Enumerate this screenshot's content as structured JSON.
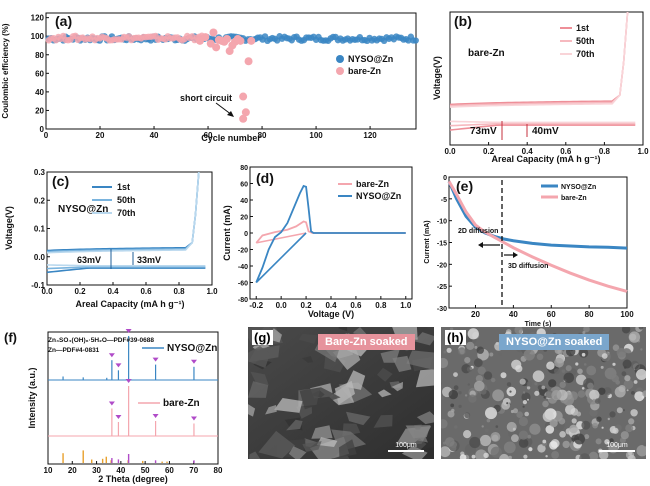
{
  "chart_data": [
    {
      "id": "a",
      "type": "scatter",
      "panel_label": "(a)",
      "xlabel": "Cycle number",
      "ylabel": "Coulombic efficiency (%)",
      "xlim": [
        0,
        137
      ],
      "ylim": [
        0,
        125
      ],
      "xticks": [
        "0",
        "20",
        "40",
        "60",
        "80",
        "100",
        "120"
      ],
      "yticks": [
        "0",
        "20",
        "40",
        "60",
        "80",
        "100",
        "120"
      ],
      "legend": "right",
      "legend_labels": [
        "NYSO@Zn",
        "bare-Zn"
      ],
      "annotation": "short circuit",
      "series": [
        {
          "name": "NYSO@Zn",
          "color": "#3a86c3",
          "mode": "dense",
          "x_start": 1,
          "x_end": 137,
          "base": 97.5,
          "amp": 2.5
        },
        {
          "name": "bare-Zn",
          "color": "#f4a6ae",
          "mode": "dense",
          "x_start": 1,
          "x_end": 58,
          "base": 98,
          "amp": 2.5,
          "extra_points": [
            [
              57,
              95
            ],
            [
              59,
              99
            ],
            [
              61,
              92
            ],
            [
              62,
              104
            ],
            [
              63,
              88
            ],
            [
              64,
              96
            ],
            [
              65,
              95
            ],
            [
              66,
              94
            ],
            [
              67,
              97
            ],
            [
              68,
              84
            ],
            [
              69,
              90
            ],
            [
              70,
              94
            ],
            [
              71,
              97
            ],
            [
              72,
              95
            ],
            [
              73,
              35
            ],
            [
              74,
              18
            ],
            [
              73,
              11
            ],
            [
              75,
              73
            ],
            [
              76,
              95
            ]
          ]
        }
      ]
    },
    {
      "id": "b",
      "type": "line",
      "panel_label": "(b)",
      "xlabel": "Areal Capacity (mA h g⁻¹)",
      "ylabel": "Voltage(V)",
      "xlim": [
        0,
        1.0
      ],
      "ylim": [
        -0.1,
        0.3
      ],
      "xticks": [
        "0.0",
        "0.2",
        "0.4",
        "0.6",
        "0.8",
        "1.0"
      ],
      "series_label": "bare-Zn",
      "legend_labels": [
        "1st",
        "50th",
        "70th"
      ],
      "colors": [
        "#ee8f98",
        "#f6b9bf",
        "#f9d4d8"
      ],
      "annotations": [
        "73mV",
        "40mV"
      ]
    },
    {
      "id": "c",
      "type": "line",
      "panel_label": "(c)",
      "xlabel": "Areal Capacity (mA h g⁻¹)",
      "ylabel": "Voltage(V)",
      "xlim": [
        0,
        1.0
      ],
      "ylim": [
        -0.1,
        0.3
      ],
      "xticks": [
        "0.0",
        "0.2",
        "0.4",
        "0.6",
        "0.8",
        "1.0"
      ],
      "yticks": [
        "-0.1",
        "0.0",
        "0.1",
        "0.2",
        "0.3"
      ],
      "series_label": "NYSO@Zn",
      "legend_labels": [
        "1st",
        "50th",
        "70th"
      ],
      "colors": [
        "#3a86c3",
        "#7ab4de",
        "#b9d8ee"
      ],
      "annotations": [
        "63mV",
        "33mV"
      ]
    },
    {
      "id": "d",
      "type": "line",
      "panel_label": "(d)",
      "xlabel": "Voltage (V)",
      "ylabel": "Current (mA)",
      "xlim": [
        -0.25,
        1.05
      ],
      "ylim": [
        -80,
        80
      ],
      "xticks": [
        "-0.2",
        "0.0",
        "0.2",
        "0.4",
        "0.6",
        "0.8",
        "1.0"
      ],
      "yticks": [
        "-80",
        "-60",
        "-40",
        "-20",
        "0",
        "20",
        "40",
        "60",
        "80"
      ],
      "legend_labels": [
        "bare-Zn",
        "NYSO@Zn"
      ],
      "series": [
        {
          "name": "bare-Zn",
          "color": "#f4a6ae",
          "points": [
            [
              -0.2,
              -12
            ],
            [
              -0.15,
              -3
            ],
            [
              -0.05,
              1
            ],
            [
              0.05,
              4
            ],
            [
              0.12,
              8
            ],
            [
              0.18,
              14
            ],
            [
              0.2,
              13
            ],
            [
              0.22,
              2
            ],
            [
              0.25,
              0
            ],
            [
              1.0,
              0
            ]
          ]
        },
        {
          "name": "NYSO@Zn",
          "color": "#3a86c3",
          "points": [
            [
              -0.2,
              -60
            ],
            [
              -0.15,
              -42
            ],
            [
              -0.1,
              -20
            ],
            [
              -0.05,
              -5
            ],
            [
              0.0,
              1
            ],
            [
              0.05,
              12
            ],
            [
              0.1,
              30
            ],
            [
              0.15,
              48
            ],
            [
              0.18,
              57
            ],
            [
              0.2,
              56
            ],
            [
              0.22,
              30
            ],
            [
              0.24,
              2
            ],
            [
              0.26,
              0
            ],
            [
              1.0,
              0
            ]
          ]
        }
      ]
    },
    {
      "id": "e",
      "type": "line",
      "panel_label": "(e)",
      "xlabel": "Time (s)",
      "ylabel": "Current (mA)",
      "xlim": [
        6,
        100
      ],
      "ylim": [
        -30,
        0
      ],
      "xticks": [
        "20",
        "40",
        "60",
        "80",
        "100"
      ],
      "yticks": [
        "-30",
        "-25",
        "-20",
        "-15",
        "-10",
        "-5",
        "0"
      ],
      "legend_labels": [
        "NYSO@Zn",
        "bare-Zn"
      ],
      "annotations": [
        "2D diffusion",
        "3D diffusion"
      ],
      "series": [
        {
          "name": "NYSO@Zn",
          "color": "#3a86c3",
          "points": [
            [
              6,
              -1
            ],
            [
              10,
              -5
            ],
            [
              15,
              -9
            ],
            [
              20,
              -11.5
            ],
            [
              25,
              -12.8
            ],
            [
              30,
              -13.6
            ],
            [
              35,
              -14.2
            ],
            [
              40,
              -14.6
            ],
            [
              50,
              -15.2
            ],
            [
              60,
              -15.6
            ],
            [
              70,
              -15.8
            ],
            [
              80,
              -16
            ],
            [
              90,
              -16.1
            ],
            [
              100,
              -16.3
            ]
          ]
        },
        {
          "name": "bare-Zn",
          "color": "#f4a6ae",
          "points": [
            [
              6,
              -1
            ],
            [
              10,
              -4
            ],
            [
              15,
              -8
            ],
            [
              20,
              -11
            ],
            [
              25,
              -12.6
            ],
            [
              30,
              -13.8
            ],
            [
              35,
              -15
            ],
            [
              40,
              -16.2
            ],
            [
              50,
              -18.3
            ],
            [
              60,
              -20.2
            ],
            [
              70,
              -22
            ],
            [
              80,
              -23.6
            ],
            [
              90,
              -25
            ],
            [
              100,
              -26.2
            ]
          ]
        }
      ]
    },
    {
      "id": "f",
      "type": "bar",
      "panel_label": "(f)",
      "xlabel": "2 Theta (degree)",
      "ylabel": "Intensity (a.u.)",
      "xlim": [
        10,
        80
      ],
      "xticks": [
        "10",
        "20",
        "30",
        "40",
        "50",
        "60",
        "70",
        "80"
      ],
      "ref_labels": [
        "Zn₄SO₄(OH)₆·5H₂O—PDF#39-0688",
        "Zn—PDF#4-0831"
      ],
      "series": [
        {
          "name": "NYSO@Zn",
          "color": "#3a86c3",
          "peaks": [
            [
              16.2,
              0.08
            ],
            [
              24.5,
              0.06
            ],
            [
              34.2,
              0.05
            ],
            [
              36.3,
              0.45
            ],
            [
              39.0,
              0.22
            ],
            [
              43.2,
              1.0
            ],
            [
              54.3,
              0.35
            ],
            [
              70.1,
              0.3
            ]
          ]
        },
        {
          "name": "bare-Zn",
          "color": "#f4a6ae",
          "peaks": [
            [
              36.3,
              0.55
            ],
            [
              39.0,
              0.28
            ],
            [
              43.2,
              1.0
            ],
            [
              54.3,
              0.3
            ],
            [
              70.1,
              0.25
            ]
          ]
        },
        {
          "name": "Zn₄SO₄(OH)₆·5H₂O",
          "color": "#e8a02c",
          "peaks": [
            [
              16.2,
              0.7
            ],
            [
              24.5,
              0.9
            ],
            [
              28.0,
              0.25
            ],
            [
              32.5,
              0.3
            ],
            [
              34.0,
              0.45
            ],
            [
              36.0,
              0.2
            ],
            [
              43.0,
              0.2
            ],
            [
              49.0,
              0.15
            ],
            [
              57.0,
              0.1
            ],
            [
              59.0,
              0.1
            ]
          ]
        },
        {
          "name": "Zn",
          "color": "#b04bc8",
          "peaks": [
            [
              36.3,
              0.55
            ],
            [
              39.0,
              0.4
            ],
            [
              43.2,
              1.0
            ],
            [
              54.3,
              0.3
            ],
            [
              70.1,
              0.3
            ]
          ]
        }
      ],
      "marker_peaks": [
        36.3,
        39.0,
        43.2,
        54.3,
        70.1
      ]
    }
  ],
  "images": [
    {
      "id": "g",
      "panel_label": "(g)",
      "tag": "Bare-Zn soaked",
      "tag_color": "#e6939c",
      "scale": "100μm"
    },
    {
      "id": "h",
      "panel_label": "(h)",
      "tag": "NYSO@Zn soaked",
      "tag_color": "#7aa6cc",
      "scale": "100μm"
    }
  ]
}
